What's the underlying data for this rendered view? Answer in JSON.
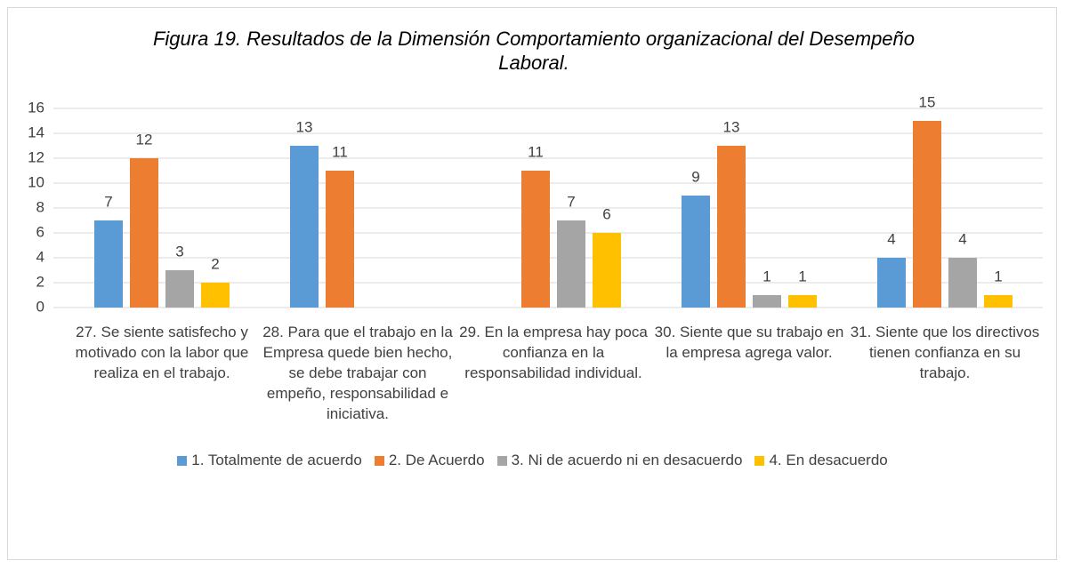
{
  "chart_data": {
    "type": "bar",
    "title": "Figura 19. Resultados de la Dimensión Comportamiento organizacional del Desempeño Laboral.",
    "categories": [
      "27. Se siente satisfecho y motivado con la labor que realiza en el trabajo.",
      "28. Para que el trabajo en la Empresa quede bien hecho, se debe trabajar con empeño, responsabilidad e iniciativa.",
      "29. En la empresa hay poca confianza en la responsabilidad individual.",
      "30. Siente que su trabajo en la empresa agrega valor.",
      "31. Siente que los directivos tienen confianza en su trabajo."
    ],
    "series": [
      {
        "name": "1. Totalmente de acuerdo",
        "color": "#5b9bd5",
        "values": [
          7,
          13,
          null,
          9,
          4
        ]
      },
      {
        "name": "2. De Acuerdo",
        "color": "#ed7d31",
        "values": [
          12,
          11,
          11,
          13,
          15
        ]
      },
      {
        "name": "3. Ni de acuerdo ni en desacuerdo",
        "color": "#a5a5a5",
        "values": [
          3,
          null,
          7,
          1,
          4
        ]
      },
      {
        "name": "4. En desacuerdo",
        "color": "#ffc000",
        "values": [
          2,
          null,
          6,
          1,
          1
        ]
      }
    ],
    "ylim": [
      0,
      16
    ],
    "yticks": [
      0,
      2,
      4,
      6,
      8,
      10,
      12,
      14,
      16
    ],
    "grid": true,
    "legend": "bottom"
  }
}
